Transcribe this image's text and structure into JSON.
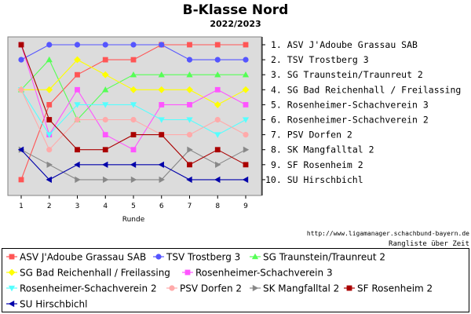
{
  "chart_data": {
    "type": "line",
    "title": "B-Klasse Nord",
    "subtitle": "2022/2023",
    "xlabel": "Runde",
    "x": [
      1,
      2,
      3,
      4,
      5,
      6,
      7,
      8,
      9
    ],
    "y_inverted": true,
    "ylim": [
      1,
      10
    ],
    "grid": false,
    "ranking": [
      "1. ASV J'Adoube Grassau SAB",
      "2. TSV Trostberg 3",
      "3. SG Traunstein/Traunreut 2",
      "4. SG Bad Reichenhall / Freilassing",
      "5. Rosenheimer-Schachverein 3",
      "6. Rosenheimer-Schachverein 2",
      "7. PSV Dorfen 2",
      "8. SK Mangfalltal 2",
      "9. SF Rosenheim 2",
      "10. SU Hirschbichl"
    ],
    "series": [
      {
        "name": "ASV J'Adoube Grassau SAB",
        "color": "#ff5555",
        "marker": "square",
        "values": [
          10,
          5,
          3,
          2,
          2,
          1,
          1,
          1,
          1
        ]
      },
      {
        "name": "TSV Trostberg 3",
        "color": "#5555ff",
        "marker": "circle",
        "values": [
          2,
          1,
          1,
          1,
          1,
          1,
          2,
          2,
          2
        ]
      },
      {
        "name": "SG Traunstein/Traunreut 2",
        "color": "#55ff55",
        "marker": "triangle-up",
        "values": [
          4,
          2,
          6,
          4,
          3,
          3,
          3,
          3,
          3
        ]
      },
      {
        "name": "SG Bad Reichenhall / Freilassing",
        "color": "#ffff00",
        "marker": "diamond",
        "values": [
          4,
          4,
          2,
          3,
          4,
          4,
          4,
          5,
          4
        ]
      },
      {
        "name": "Rosenheimer-Schachverein 3",
        "color": "#ff55ff",
        "marker": "square",
        "values": [
          1,
          7,
          4,
          7,
          8,
          5,
          5,
          4,
          5
        ]
      },
      {
        "name": "Rosenheimer-Schachverein 2",
        "color": "#55ffff",
        "marker": "triangle-down",
        "values": [
          4,
          7,
          5,
          5,
          5,
          6,
          6,
          7,
          6
        ]
      },
      {
        "name": "PSV Dorfen 2",
        "color": "#ffaaaa",
        "marker": "circle",
        "values": [
          4,
          8,
          6,
          6,
          6,
          7,
          7,
          6,
          7
        ]
      },
      {
        "name": "SK Mangfalltal 2",
        "color": "#888888",
        "marker": "triangle-right",
        "values": [
          8,
          9,
          10,
          10,
          10,
          10,
          8,
          9,
          8
        ]
      },
      {
        "name": "SF Rosenheim 2",
        "color": "#aa0000",
        "marker": "square",
        "values": [
          1,
          6,
          8,
          8,
          7,
          7,
          9,
          8,
          9
        ]
      },
      {
        "name": "SU Hirschbichl",
        "color": "#0000aa",
        "marker": "triangle-left",
        "values": [
          8,
          10,
          9,
          9,
          9,
          9,
          10,
          10,
          10
        ]
      }
    ],
    "source": "http://www.ligamanager.schachbund-bayern.de",
    "footer_note": "Rangliste über Zeit"
  }
}
